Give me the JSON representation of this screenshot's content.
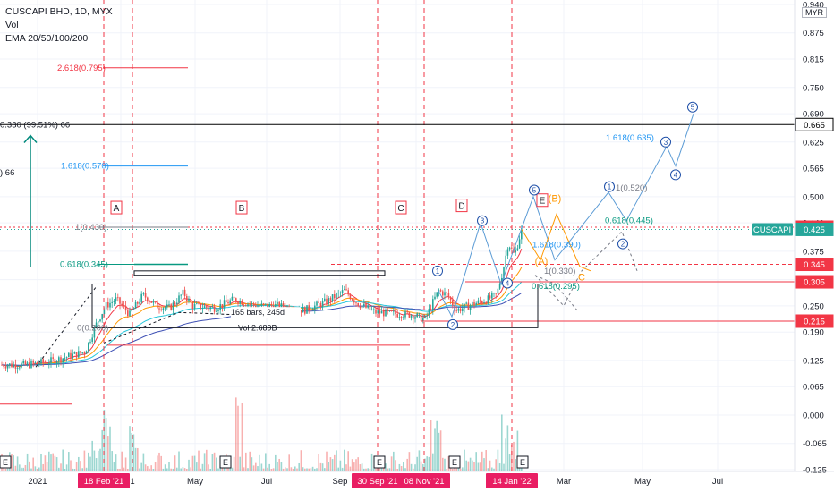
{
  "header": {
    "symbol_line": "CUSCAPI BHD, 1D, MYX",
    "indicator_vol": "Vol",
    "indicator_ema": "EMA 20/50/100/200",
    "currency": "MYR"
  },
  "chart_data": {
    "type": "candlestick",
    "symbol": "CUSCAPI",
    "last_price": "0.425",
    "price_axis": {
      "ticks": [
        "0.940",
        "0.875",
        "0.815",
        "0.750",
        "0.690",
        "0.625",
        "0.565",
        "0.500",
        "0.440",
        "0.375",
        "0.310",
        "0.250",
        "0.190",
        "0.125",
        "0.065",
        "0.000",
        "-0.065",
        "-0.125"
      ],
      "ylim": [
        -0.13,
        0.94
      ]
    },
    "time_axis": [
      "2021",
      "Mar '21",
      "May",
      "Jul",
      "Sep",
      "Nov",
      "Mar",
      "May",
      "Jul"
    ],
    "time_markers": [
      "18 Feb '21",
      "30 Sep '21",
      "08 Nov '21",
      "14 Jan '22"
    ],
    "price_labels": [
      {
        "text": "0.665",
        "value": 0.665,
        "bg": "#ffffff",
        "fg": "#000000",
        "border": "#000000"
      },
      {
        "text": "0.430",
        "value": 0.43,
        "bg": "#f23645",
        "fg": "#ffffff"
      },
      {
        "text": "CUSCAPI",
        "value": 0.425,
        "bg": "#26a69a",
        "fg": "#ffffff",
        "name_tag": true
      },
      {
        "text": "0.425",
        "value": 0.425,
        "bg": "#26a69a",
        "fg": "#ffffff"
      },
      {
        "text": "0.345",
        "value": 0.345,
        "bg": "#f23645",
        "fg": "#ffffff"
      },
      {
        "text": "0.305",
        "value": 0.305,
        "bg": "#f23645",
        "fg": "#ffffff"
      },
      {
        "text": "0.215",
        "value": 0.215,
        "bg": "#f23645",
        "fg": "#ffffff"
      }
    ],
    "fib_labels": [
      {
        "text": "2.618(0.795)",
        "color": "#f23645"
      },
      {
        "text": "1.618(0.570)",
        "color": "#2196f3"
      },
      {
        "text": "1(0.430)",
        "color": "#787b86"
      },
      {
        "text": "0.618(0.345)",
        "color": "#089981"
      },
      {
        "text": "0(0.200)",
        "color": "#787b86"
      },
      {
        "text": "1.618(0.635)",
        "color": "#2196f3"
      },
      {
        "text": "1(0.520)",
        "color": "#787b86"
      },
      {
        "text": "0.618(0.445)",
        "color": "#089981"
      },
      {
        "text": "1.618(0.390)",
        "color": "#2196f3"
      },
      {
        "text": "1(0.330)",
        "color": "#787b86"
      },
      {
        "text": "0.618(0.295)",
        "color": "#089981"
      }
    ],
    "wave_letters": [
      "A",
      "B",
      "C",
      "D",
      "E"
    ],
    "wave_labels": [
      "(A)",
      "(B)",
      "C"
    ],
    "wave_numbers_upper": [
      "1",
      "3",
      "5",
      "1",
      "3",
      "5"
    ],
    "wave_numbers_lower": [
      "2",
      "4",
      "2",
      "4"
    ],
    "annotations": {
      "range": "165 bars, 245d",
      "volume": "Vol 2.689B",
      "measure_left": "0.330 (99.51%) 66",
      "measure_left2": ") 66"
    },
    "event_flags": [
      "E",
      "E",
      "E",
      "E",
      "E"
    ],
    "ema_colors": [
      "#f23645",
      "#ff9800",
      "#26c6da",
      "#3f51b5"
    ]
  }
}
